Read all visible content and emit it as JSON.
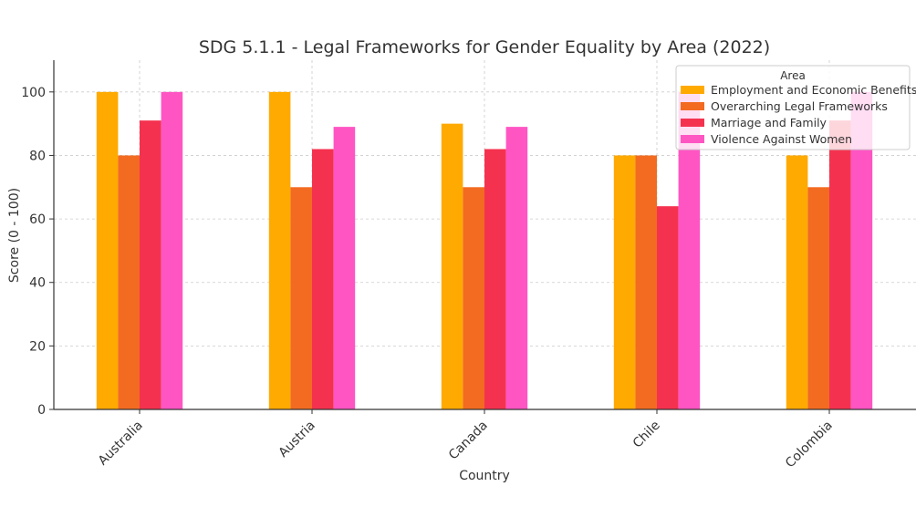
{
  "chart_data": {
    "type": "bar",
    "title": "SDG 5.1.1 - Legal Frameworks for Gender Equality by Area (2022)",
    "xlabel": "Country",
    "ylabel": "Score (0 - 100)",
    "ylim": [
      0,
      110
    ],
    "yticks": [
      0,
      20,
      40,
      60,
      80,
      100
    ],
    "categories": [
      "Australia",
      "Austria",
      "Canada",
      "Chile",
      "Colombia"
    ],
    "series": [
      {
        "name": "Employment and Economic Benefits",
        "color": "#FFAA00",
        "values": [
          100,
          100,
          90,
          80,
          80
        ]
      },
      {
        "name": "Overarching Legal Frameworks",
        "color": "#F26B21",
        "values": [
          80,
          70,
          70,
          80,
          70
        ]
      },
      {
        "name": "Marriage and Family",
        "color": "#F4324F",
        "values": [
          91,
          82,
          82,
          64,
          91
        ]
      },
      {
        "name": "Violence Against Women",
        "color": "#FF55C3",
        "values": [
          100,
          89,
          89,
          100,
          100
        ]
      }
    ],
    "legend": {
      "title": "Area",
      "position": "top-right"
    },
    "grid": true
  }
}
